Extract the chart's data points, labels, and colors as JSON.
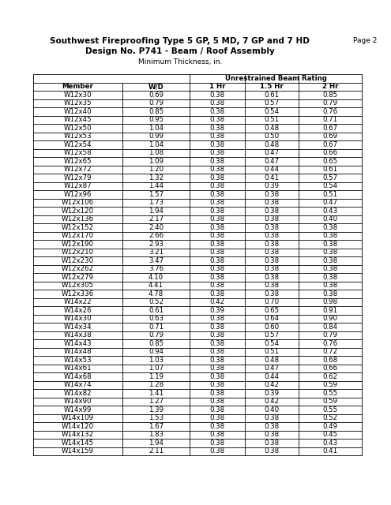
{
  "title_line1": "Southwest Fireproofing Type 5 GP, 5 MD, 7 GP and 7 HD",
  "title_line2": "Design No. P741 - Beam / Roof Assembly",
  "subtitle": "Minimum Thickness, in.",
  "page_label": "Page 2",
  "col_headers": [
    "Member",
    "W/D",
    "1 Hr",
    "1.5 Hr",
    "2 Hr"
  ],
  "span_header": "Unrestrained Beam Rating",
  "rows": [
    [
      "W12x30",
      "0.69",
      "0.38",
      "0.61",
      "0.85"
    ],
    [
      "W12x35",
      "0.79",
      "0.38",
      "0.57",
      "0.79"
    ],
    [
      "W12x40",
      "0.85",
      "0.38",
      "0.54",
      "0.76"
    ],
    [
      "W12x45",
      "0.95",
      "0.38",
      "0.51",
      "0.71"
    ],
    [
      "W12x50",
      "1.04",
      "0.38",
      "0.48",
      "0.67"
    ],
    [
      "W12x53",
      "0.99",
      "0.38",
      "0.50",
      "0.69"
    ],
    [
      "W12x54",
      "1.04",
      "0.38",
      "0.48",
      "0.67"
    ],
    [
      "W12x58",
      "1.08",
      "0.38",
      "0.47",
      "0.66"
    ],
    [
      "W12x65",
      "1.09",
      "0.38",
      "0.47",
      "0.65"
    ],
    [
      "W12x72",
      "1.20",
      "0.38",
      "0.44",
      "0.61"
    ],
    [
      "W12x79",
      "1.32",
      "0.38",
      "0.41",
      "0.57"
    ],
    [
      "W12x87",
      "1.44",
      "0.38",
      "0.39",
      "0.54"
    ],
    [
      "W12x96",
      "1.57",
      "0.38",
      "0.38",
      "0.51"
    ],
    [
      "W12x106",
      "1.73",
      "0.38",
      "0.38",
      "0.47"
    ],
    [
      "W12x120",
      "1.94",
      "0.38",
      "0.38",
      "0.43"
    ],
    [
      "W12x136",
      "2.17",
      "0.38",
      "0.38",
      "0.40"
    ],
    [
      "W12x152",
      "2.40",
      "0.38",
      "0.38",
      "0.38"
    ],
    [
      "W12x170",
      "2.66",
      "0.38",
      "0.38",
      "0.38"
    ],
    [
      "W12x190",
      "2.93",
      "0.38",
      "0.38",
      "0.38"
    ],
    [
      "W12x210",
      "3.21",
      "0.38",
      "0.38",
      "0.38"
    ],
    [
      "W12x230",
      "3.47",
      "0.38",
      "0.38",
      "0.38"
    ],
    [
      "W12x262",
      "3.76",
      "0.38",
      "0.38",
      "0.38"
    ],
    [
      "W12x279",
      "4.10",
      "0.38",
      "0.38",
      "0.38"
    ],
    [
      "W12x305",
      "4.41",
      "0.38",
      "0.38",
      "0.38"
    ],
    [
      "W12x336",
      "4.78",
      "0.38",
      "0.38",
      "0.38"
    ],
    [
      "W14x22",
      "0.52",
      "0.42",
      "0.70",
      "0.98"
    ],
    [
      "W14x26",
      "0.61",
      "0.39",
      "0.65",
      "0.91"
    ],
    [
      "W14x30",
      "0.63",
      "0.38",
      "0.64",
      "0.90"
    ],
    [
      "W14x34",
      "0.71",
      "0.38",
      "0.60",
      "0.84"
    ],
    [
      "W14x38",
      "0.79",
      "0.38",
      "0.57",
      "0.79"
    ],
    [
      "W14x43",
      "0.85",
      "0.38",
      "0.54",
      "0.76"
    ],
    [
      "W14x48",
      "0.94",
      "0.38",
      "0.51",
      "0.72"
    ],
    [
      "W14x53",
      "1.03",
      "0.38",
      "0.48",
      "0.68"
    ],
    [
      "W14x61",
      "1.07",
      "0.38",
      "0.47",
      "0.66"
    ],
    [
      "W14x68",
      "1.19",
      "0.38",
      "0.44",
      "0.62"
    ],
    [
      "W14x74",
      "1.28",
      "0.38",
      "0.42",
      "0.59"
    ],
    [
      "W14x82",
      "1.41",
      "0.38",
      "0.39",
      "0.55"
    ],
    [
      "W14x90",
      "1.27",
      "0.38",
      "0.42",
      "0.59"
    ],
    [
      "W14x99",
      "1.39",
      "0.38",
      "0.40",
      "0.55"
    ],
    [
      "W14x109",
      "1.53",
      "0.38",
      "0.38",
      "0.52"
    ],
    [
      "W14x120",
      "1.67",
      "0.38",
      "0.38",
      "0.49"
    ],
    [
      "W14x132",
      "1.83",
      "0.38",
      "0.38",
      "0.45"
    ],
    [
      "W14x145",
      "1.94",
      "0.38",
      "0.38",
      "0.43"
    ],
    [
      "W14x159",
      "2.11",
      "0.38",
      "0.38",
      "0.41"
    ]
  ],
  "background_color": "#ffffff",
  "table_border_color": "#000000",
  "font_size_title": 7.5,
  "font_size_table": 6.2,
  "font_size_subtitle": 6.5,
  "fig_width": 4.95,
  "fig_height": 6.4,
  "dpi": 100
}
